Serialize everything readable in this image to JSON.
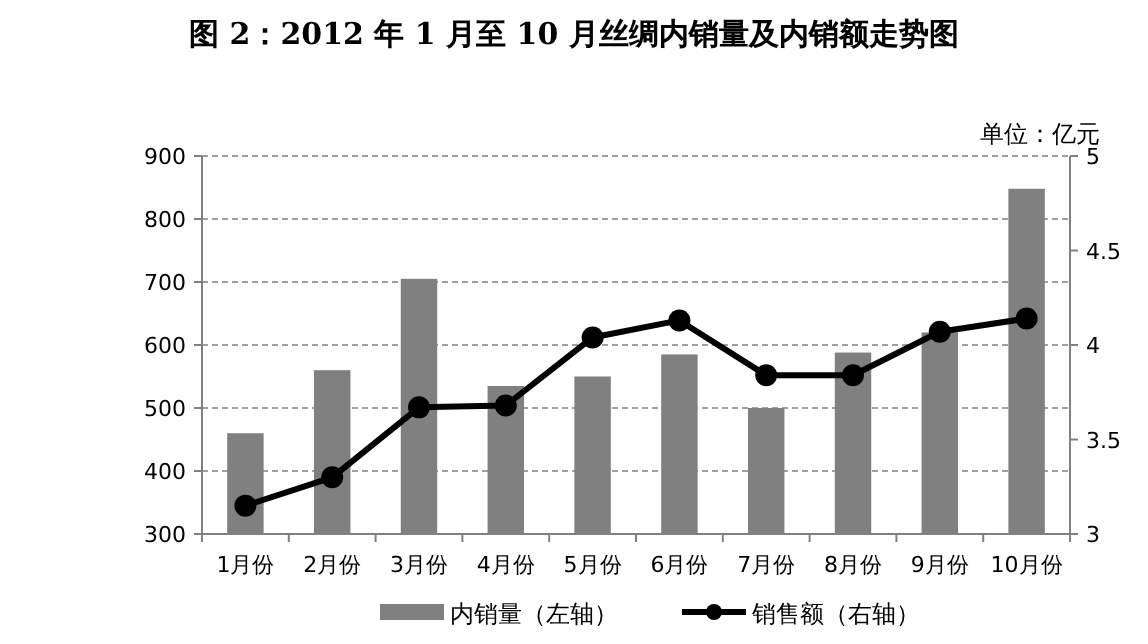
{
  "chart_data": {
    "type": "bar",
    "title": "图 2：2012 年 1 月至 10 月丝绸内销量及内销额走势图",
    "categories": [
      "1月份",
      "2月份",
      "3月份",
      "4月份",
      "5月份",
      "6月份",
      "7月份",
      "8月份",
      "9月份",
      "10月份"
    ],
    "series": [
      {
        "name": "内销量（左轴）",
        "color": "#808080",
        "values": [
          460,
          560,
          705,
          535,
          550,
          585,
          500,
          588,
          620,
          848
        ]
      },
      {
        "name": "销售额（右轴）",
        "type": "line",
        "axis": "y2",
        "color": "#000000",
        "values": [
          3.15,
          3.3,
          3.67,
          3.68,
          4.04,
          4.13,
          3.84,
          3.84,
          4.07,
          4.14
        ]
      }
    ],
    "ylim": [
      300,
      900
    ],
    "yticks": [
      300,
      400,
      500,
      600,
      700,
      800,
      900
    ],
    "y2lim": [
      3,
      5
    ],
    "y2ticks": [
      3,
      3.5,
      4,
      4.5,
      5
    ],
    "y2label": "单位：亿元",
    "grid": "y",
    "legend": "bottom",
    "marker": "circle"
  }
}
